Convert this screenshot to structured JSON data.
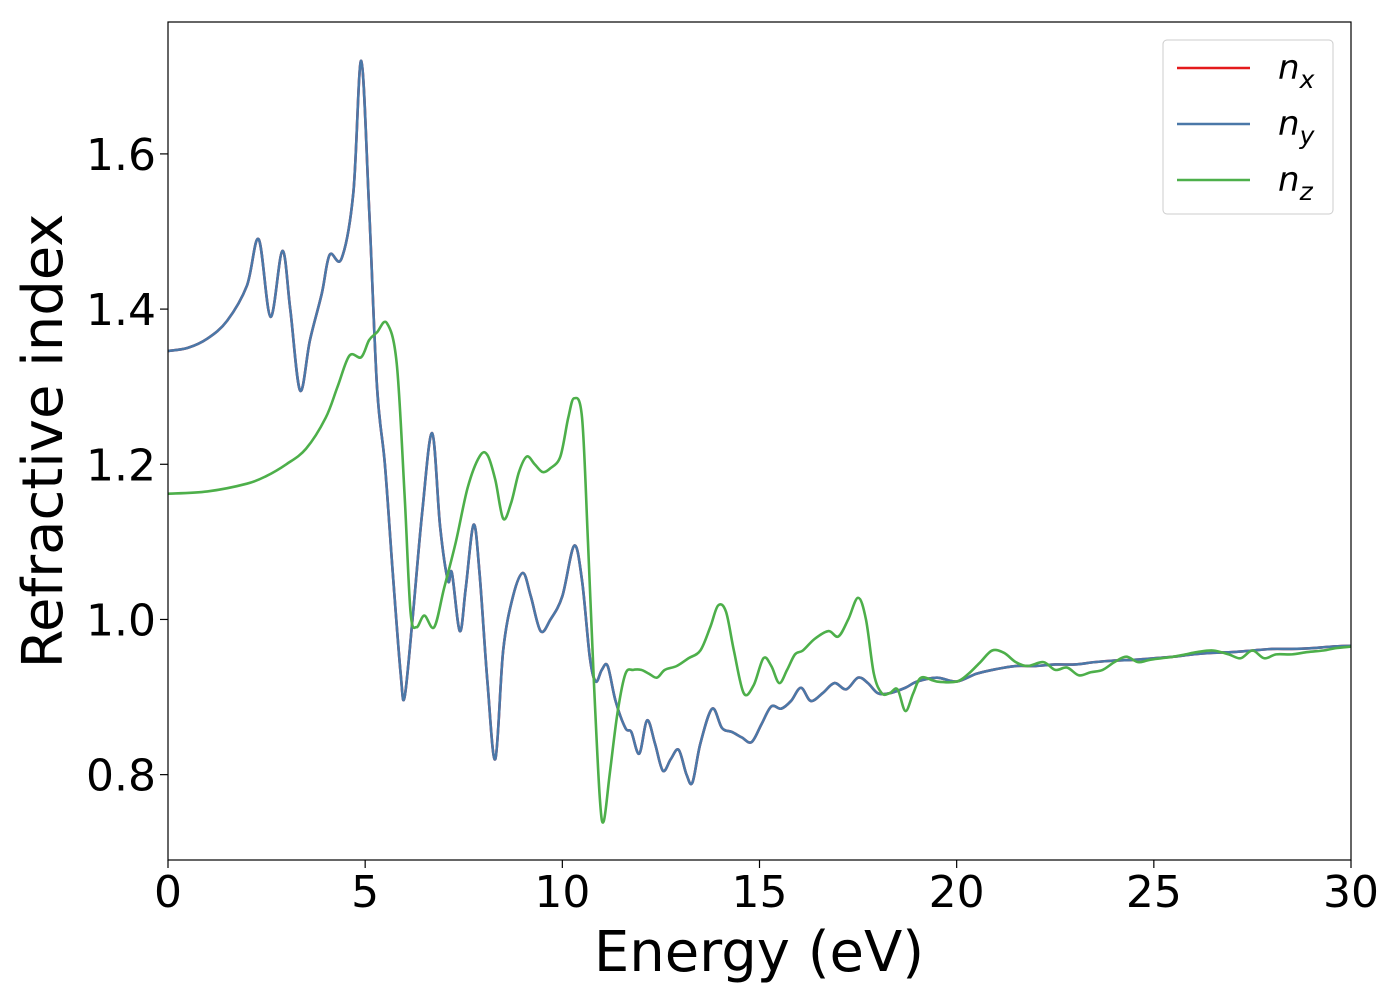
{
  "chart_data": {
    "type": "line",
    "title": "",
    "xlabel": "Energy (eV)",
    "ylabel": "Refractive index",
    "xlim": [
      0,
      30
    ],
    "ylim": [
      0.69,
      1.77
    ],
    "xticks": [
      0,
      5,
      10,
      15,
      20,
      25,
      30
    ],
    "xtick_labels": [
      "0",
      "5",
      "10",
      "15",
      "20",
      "25",
      "30"
    ],
    "yticks": [
      0.8,
      1.0,
      1.2,
      1.4,
      1.6
    ],
    "ytick_labels": [
      "0.8",
      "1.0",
      "1.2",
      "1.4",
      "1.6"
    ],
    "grid": false,
    "legend_position": "top-right",
    "series": [
      {
        "name": "n",
        "subscript": "x",
        "color": "#e41a1c",
        "x": [
          0,
          0.5,
          1.0,
          1.5,
          2.0,
          2.3,
          2.6,
          2.9,
          3.1,
          3.35,
          3.6,
          3.9,
          4.1,
          4.4,
          4.7,
          4.9,
          5.1,
          5.3,
          5.5,
          5.7,
          5.9,
          6.0,
          6.2,
          6.45,
          6.7,
          6.9,
          7.1,
          7.2,
          7.4,
          7.55,
          7.75,
          7.9,
          8.1,
          8.3,
          8.5,
          8.75,
          9.0,
          9.2,
          9.45,
          9.7,
          10.0,
          10.3,
          10.5,
          10.7,
          10.85,
          11.0,
          11.15,
          11.35,
          11.6,
          11.75,
          11.95,
          12.15,
          12.35,
          12.55,
          12.75,
          12.95,
          13.15,
          13.3,
          13.5,
          13.8,
          14.05,
          14.3,
          14.55,
          14.8,
          15.05,
          15.3,
          15.55,
          15.8,
          16.05,
          16.3,
          16.6,
          16.9,
          17.2,
          17.5,
          17.75,
          18.0,
          18.3,
          18.7,
          19.0,
          19.5,
          20.0,
          20.5,
          21.0,
          21.5,
          22.0,
          22.5,
          23.0,
          23.5,
          24.0,
          24.5,
          25.0,
          25.5,
          26.0,
          26.5,
          27.0,
          27.5,
          28.0,
          28.5,
          29.0,
          29.5,
          30.0
        ],
        "y": [
          1.346,
          1.35,
          1.362,
          1.385,
          1.43,
          1.49,
          1.39,
          1.475,
          1.4,
          1.295,
          1.36,
          1.42,
          1.47,
          1.465,
          1.55,
          1.72,
          1.53,
          1.3,
          1.2,
          1.06,
          0.93,
          0.9,
          1.0,
          1.14,
          1.24,
          1.12,
          1.05,
          1.06,
          0.985,
          1.04,
          1.122,
          1.06,
          0.92,
          0.82,
          0.96,
          1.03,
          1.06,
          1.03,
          0.985,
          1.0,
          1.03,
          1.095,
          1.05,
          0.95,
          0.92,
          0.935,
          0.94,
          0.895,
          0.86,
          0.855,
          0.827,
          0.87,
          0.84,
          0.805,
          0.82,
          0.832,
          0.8,
          0.79,
          0.84,
          0.885,
          0.86,
          0.855,
          0.848,
          0.842,
          0.865,
          0.888,
          0.885,
          0.895,
          0.912,
          0.895,
          0.905,
          0.918,
          0.91,
          0.925,
          0.918,
          0.905,
          0.905,
          0.912,
          0.92,
          0.925,
          0.92,
          0.93,
          0.936,
          0.94,
          0.94,
          0.942,
          0.942,
          0.945,
          0.947,
          0.948,
          0.95,
          0.952,
          0.955,
          0.957,
          0.958,
          0.96,
          0.962,
          0.962,
          0.963,
          0.965,
          0.966
        ]
      },
      {
        "name": "n",
        "subscript": "y",
        "color": "#4a78a8",
        "x": [
          0,
          0.5,
          1.0,
          1.5,
          2.0,
          2.3,
          2.6,
          2.9,
          3.1,
          3.35,
          3.6,
          3.9,
          4.1,
          4.4,
          4.7,
          4.9,
          5.1,
          5.3,
          5.5,
          5.7,
          5.9,
          6.0,
          6.2,
          6.45,
          6.7,
          6.9,
          7.1,
          7.2,
          7.4,
          7.55,
          7.75,
          7.9,
          8.1,
          8.3,
          8.5,
          8.75,
          9.0,
          9.2,
          9.45,
          9.7,
          10.0,
          10.3,
          10.5,
          10.7,
          10.85,
          11.0,
          11.15,
          11.35,
          11.6,
          11.75,
          11.95,
          12.15,
          12.35,
          12.55,
          12.75,
          12.95,
          13.15,
          13.3,
          13.5,
          13.8,
          14.05,
          14.3,
          14.55,
          14.8,
          15.05,
          15.3,
          15.55,
          15.8,
          16.05,
          16.3,
          16.6,
          16.9,
          17.2,
          17.5,
          17.75,
          18.0,
          18.3,
          18.7,
          19.0,
          19.5,
          20.0,
          20.5,
          21.0,
          21.5,
          22.0,
          22.5,
          23.0,
          23.5,
          24.0,
          24.5,
          25.0,
          25.5,
          26.0,
          26.5,
          27.0,
          27.5,
          28.0,
          28.5,
          29.0,
          29.5,
          30.0
        ],
        "y": [
          1.346,
          1.35,
          1.362,
          1.385,
          1.43,
          1.49,
          1.39,
          1.475,
          1.4,
          1.295,
          1.36,
          1.42,
          1.47,
          1.465,
          1.55,
          1.72,
          1.53,
          1.3,
          1.2,
          1.06,
          0.93,
          0.9,
          1.0,
          1.14,
          1.24,
          1.12,
          1.05,
          1.06,
          0.985,
          1.04,
          1.122,
          1.06,
          0.92,
          0.82,
          0.96,
          1.03,
          1.06,
          1.03,
          0.985,
          1.0,
          1.03,
          1.095,
          1.05,
          0.95,
          0.92,
          0.935,
          0.94,
          0.895,
          0.86,
          0.855,
          0.827,
          0.87,
          0.84,
          0.805,
          0.82,
          0.832,
          0.8,
          0.79,
          0.84,
          0.885,
          0.86,
          0.855,
          0.848,
          0.842,
          0.865,
          0.888,
          0.885,
          0.895,
          0.912,
          0.895,
          0.905,
          0.918,
          0.91,
          0.925,
          0.918,
          0.905,
          0.905,
          0.912,
          0.92,
          0.925,
          0.92,
          0.93,
          0.936,
          0.94,
          0.94,
          0.942,
          0.942,
          0.945,
          0.947,
          0.948,
          0.95,
          0.952,
          0.955,
          0.957,
          0.958,
          0.96,
          0.962,
          0.962,
          0.963,
          0.965,
          0.966
        ]
      },
      {
        "name": "n",
        "subscript": "z",
        "color": "#4daf4a",
        "x": [
          0,
          1.0,
          2.0,
          2.5,
          3.0,
          3.5,
          4.0,
          4.3,
          4.6,
          4.9,
          5.1,
          5.3,
          5.55,
          5.8,
          6.0,
          6.15,
          6.3,
          6.5,
          6.75,
          7.0,
          7.3,
          7.6,
          7.9,
          8.1,
          8.3,
          8.5,
          8.7,
          8.9,
          9.1,
          9.3,
          9.5,
          9.7,
          9.95,
          10.15,
          10.3,
          10.5,
          10.65,
          10.8,
          10.95,
          11.05,
          11.2,
          11.4,
          11.6,
          11.8,
          12.0,
          12.2,
          12.4,
          12.6,
          12.9,
          13.2,
          13.5,
          13.75,
          13.95,
          14.15,
          14.35,
          14.6,
          14.85,
          15.1,
          15.3,
          15.5,
          15.7,
          15.9,
          16.1,
          16.4,
          16.75,
          17.0,
          17.25,
          17.5,
          17.7,
          17.9,
          18.1,
          18.3,
          18.5,
          18.7,
          18.9,
          19.1,
          19.5,
          20.0,
          20.3,
          20.6,
          20.9,
          21.2,
          21.5,
          21.8,
          22.2,
          22.5,
          22.8,
          23.1,
          23.4,
          23.7,
          24.0,
          24.3,
          24.6,
          24.9,
          25.2,
          25.5,
          25.8,
          26.1,
          26.5,
          26.9,
          27.2,
          27.5,
          27.8,
          28.1,
          28.5,
          28.9,
          29.3,
          29.6,
          30.0
        ],
        "y": [
          1.162,
          1.165,
          1.175,
          1.185,
          1.2,
          1.22,
          1.26,
          1.3,
          1.34,
          1.338,
          1.36,
          1.37,
          1.382,
          1.33,
          1.16,
          1.01,
          0.99,
          1.005,
          0.99,
          1.04,
          1.1,
          1.17,
          1.21,
          1.212,
          1.18,
          1.13,
          1.15,
          1.19,
          1.21,
          1.2,
          1.19,
          1.195,
          1.21,
          1.26,
          1.285,
          1.26,
          1.1,
          0.92,
          0.77,
          0.74,
          0.8,
          0.88,
          0.93,
          0.935,
          0.935,
          0.93,
          0.925,
          0.935,
          0.94,
          0.95,
          0.96,
          0.99,
          1.018,
          1.01,
          0.96,
          0.905,
          0.915,
          0.95,
          0.94,
          0.918,
          0.935,
          0.955,
          0.96,
          0.975,
          0.985,
          0.978,
          1.0,
          1.028,
          1.0,
          0.93,
          0.905,
          0.905,
          0.91,
          0.882,
          0.905,
          0.925,
          0.92,
          0.92,
          0.93,
          0.945,
          0.96,
          0.957,
          0.945,
          0.94,
          0.945,
          0.935,
          0.938,
          0.928,
          0.932,
          0.935,
          0.945,
          0.952,
          0.945,
          0.948,
          0.95,
          0.952,
          0.955,
          0.958,
          0.96,
          0.955,
          0.95,
          0.96,
          0.95,
          0.955,
          0.955,
          0.958,
          0.96,
          0.963,
          0.965
        ]
      }
    ]
  }
}
